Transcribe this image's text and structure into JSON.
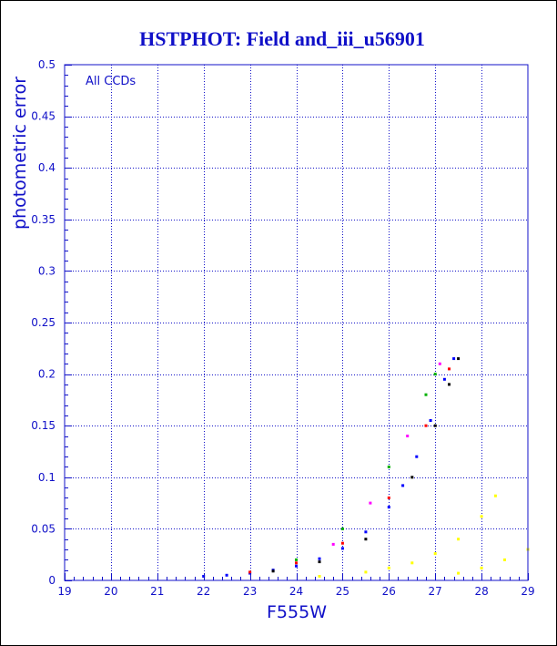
{
  "chart_data": {
    "type": "scatter",
    "title": "HSTPHOT: Field and_iii_u56901",
    "xlabel": "F555W",
    "ylabel": "photometric error",
    "annotation": "All CCDs",
    "xlim": [
      19,
      29
    ],
    "ylim": [
      0,
      0.5
    ],
    "x_ticks": [
      "19",
      "20",
      "21",
      "22",
      "23",
      "24",
      "25",
      "26",
      "27",
      "28",
      "29"
    ],
    "y_ticks": [
      "0",
      "0.05",
      "0.1",
      "0.15",
      "0.2",
      "0.25",
      "0.3",
      "0.35",
      "0.4",
      "0.45",
      "0.5"
    ],
    "grid": true,
    "colors": {
      "title": "#1010c8",
      "axis": "#1010c8",
      "grid": "#1010c8",
      "ticks": "#1010c8",
      "frame": "#000000"
    },
    "series": [
      {
        "color": "#0000ff",
        "points": [
          [
            22.0,
            0.004
          ],
          [
            22.5,
            0.005
          ],
          [
            23.0,
            0.007
          ],
          [
            23.5,
            0.01
          ],
          [
            24.0,
            0.014
          ],
          [
            24.5,
            0.021
          ],
          [
            25.0,
            0.031
          ],
          [
            25.5,
            0.047
          ],
          [
            26.0,
            0.071
          ],
          [
            26.3,
            0.092
          ],
          [
            26.6,
            0.12
          ],
          [
            26.9,
            0.155
          ],
          [
            27.2,
            0.195
          ],
          [
            27.4,
            0.215
          ]
        ]
      },
      {
        "color": "#000000",
        "points": [
          [
            23.5,
            0.009
          ],
          [
            24.5,
            0.018
          ],
          [
            25.5,
            0.04
          ],
          [
            26.5,
            0.1
          ],
          [
            27.0,
            0.15
          ],
          [
            27.3,
            0.19
          ],
          [
            27.5,
            0.215
          ]
        ]
      },
      {
        "color": "#ff0000",
        "points": [
          [
            23.0,
            0.008
          ],
          [
            24.0,
            0.017
          ],
          [
            25.0,
            0.036
          ],
          [
            26.0,
            0.08
          ],
          [
            26.8,
            0.15
          ],
          [
            27.3,
            0.205
          ]
        ]
      },
      {
        "color": "#00b000",
        "points": [
          [
            24.0,
            0.02
          ],
          [
            25.0,
            0.05
          ],
          [
            26.0,
            0.11
          ],
          [
            26.8,
            0.18
          ],
          [
            27.0,
            0.2
          ]
        ]
      },
      {
        "color": "#ffff00",
        "points": [
          [
            24.5,
            0.004
          ],
          [
            25.5,
            0.008
          ],
          [
            26.0,
            0.012
          ],
          [
            26.5,
            0.017
          ],
          [
            27.0,
            0.026
          ],
          [
            27.5,
            0.04
          ],
          [
            28.0,
            0.062
          ],
          [
            28.3,
            0.082
          ],
          [
            27.5,
            0.007
          ],
          [
            28.0,
            0.012
          ],
          [
            28.5,
            0.02
          ],
          [
            29.0,
            0.03
          ]
        ]
      },
      {
        "color": "#ff00ff",
        "points": [
          [
            24.8,
            0.035
          ],
          [
            25.6,
            0.075
          ],
          [
            26.4,
            0.14
          ],
          [
            27.1,
            0.21
          ]
        ]
      }
    ]
  }
}
